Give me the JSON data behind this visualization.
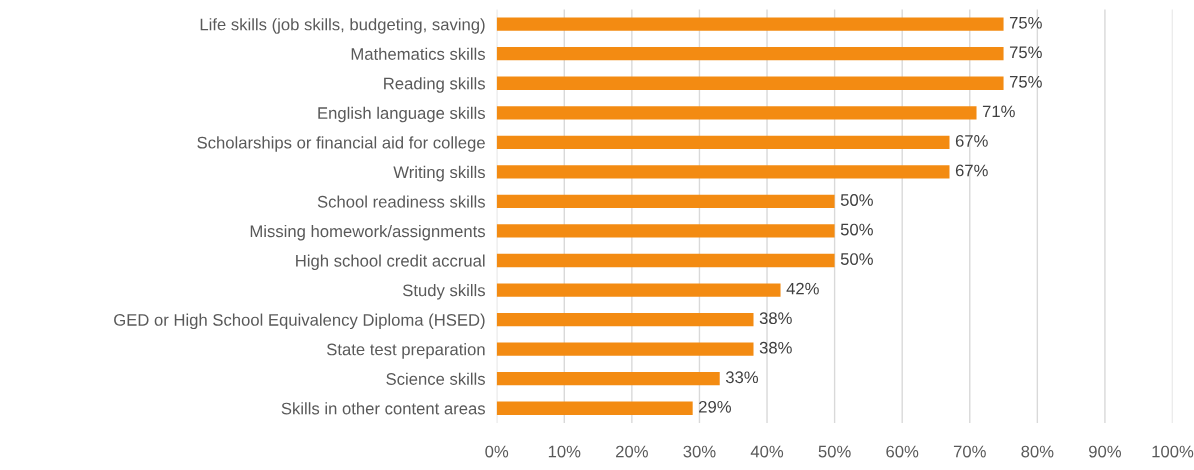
{
  "chart_data": {
    "type": "bar",
    "orientation": "horizontal",
    "categories": [
      "Life skills (job skills, budgeting, saving)",
      "Mathematics skills",
      "Reading skills",
      "English language skills",
      "Scholarships or financial aid for college",
      "Writing skills",
      "School readiness skills",
      "Missing homework/assignments",
      "High school credit accrual",
      "Study skills",
      "GED or High School Equivalency Diploma (HSED)",
      "State test preparation",
      "Science skills",
      "Skills in other content areas"
    ],
    "values": [
      75,
      75,
      75,
      71,
      67,
      67,
      50,
      50,
      50,
      42,
      38,
      38,
      33,
      29
    ],
    "value_labels": [
      "75%",
      "75%",
      "75%",
      "71%",
      "67%",
      "67%",
      "50%",
      "50%",
      "50%",
      "42%",
      "38%",
      "38%",
      "33%",
      "29%"
    ],
    "color": "#f38b12",
    "xlim": [
      0,
      100
    ],
    "xticks": [
      {
        "value": 0,
        "label": "0%"
      },
      {
        "value": 10,
        "label": "10%"
      },
      {
        "value": 20,
        "label": "20%"
      },
      {
        "value": 30,
        "label": "30%"
      },
      {
        "value": 40,
        "label": "40%"
      },
      {
        "value": 50,
        "label": "50%"
      },
      {
        "value": 60,
        "label": "60%"
      },
      {
        "value": 70,
        "label": "70%"
      },
      {
        "value": 80,
        "label": "80%"
      },
      {
        "value": 90,
        "label": "90%"
      },
      {
        "value": 100,
        "label": "100%"
      }
    ],
    "grid": "x",
    "legend": false
  }
}
